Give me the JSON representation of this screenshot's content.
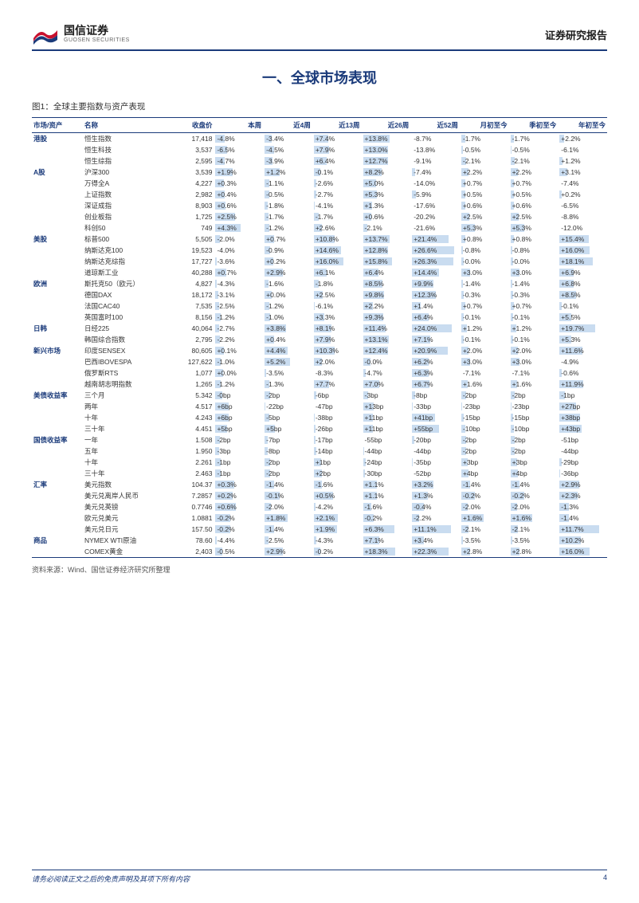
{
  "header": {
    "logo_cn": "国信证券",
    "logo_en": "GUOSEN SECURITIES",
    "report_type": "证券研究报告"
  },
  "section_title": "一、全球市场表现",
  "figure_label": "图1：全球主要指数与资产表现",
  "table": {
    "columns": [
      "市场/资产",
      "名称",
      "收盘价",
      "本周",
      "近4周",
      "近13周",
      "近26周",
      "近52周",
      "月初至今",
      "季初至今",
      "年初至今"
    ],
    "bar_color": "#c9dcf0",
    "groups": [
      {
        "group": "港股",
        "rows": [
          {
            "name": "恒生指数",
            "price": "17,418",
            "v": [
              "-4.8%",
              "-3.4%",
              "+7.4%",
              "+13.8%",
              "-8.7%",
              "-1.7%",
              "-1.7%",
              "+2.2%"
            ],
            "b": [
              20,
              15,
              32,
              58,
              0,
              8,
              8,
              10
            ]
          },
          {
            "name": "恒生科技",
            "price": "3,537",
            "v": [
              "-6.5%",
              "-4.5%",
              "+7.9%",
              "+13.0%",
              "-13.8%",
              "-0.5%",
              "-0.5%",
              "-6.1%"
            ],
            "b": [
              26,
              20,
              34,
              55,
              0,
              3,
              3,
              0
            ]
          },
          {
            "name": "恒生综指",
            "price": "2,595",
            "v": [
              "-4.7%",
              "-3.9%",
              "+6.4%",
              "+12.7%",
              "-9.1%",
              "-2.1%",
              "-2.1%",
              "+1.2%"
            ],
            "b": [
              20,
              17,
              28,
              54,
              0,
              10,
              10,
              6
            ]
          }
        ]
      },
      {
        "group": "A股",
        "rows": [
          {
            "name": "沪深300",
            "price": "3,539",
            "v": [
              "+1.9%",
              "+1.2%",
              "-0.1%",
              "+8.2%",
              "-7.4%",
              "+2.2%",
              "+2.2%",
              "+3.1%"
            ],
            "b": [
              38,
              32,
              14,
              40,
              6,
              16,
              16,
              16
            ]
          },
          {
            "name": "万得全A",
            "price": "4,227",
            "v": [
              "+0.3%",
              "-1.1%",
              "-2.6%",
              "+5.0%",
              "-14.0%",
              "+0.7%",
              "+0.7%",
              "-7.4%"
            ],
            "b": [
              18,
              10,
              6,
              28,
              0,
              8,
              8,
              0
            ]
          },
          {
            "name": "上证指数",
            "price": "2,982",
            "v": [
              "+0.4%",
              "-0.5%",
              "-2.7%",
              "+5.3%",
              "-5.9%",
              "+0.5%",
              "+0.5%",
              "+0.2%"
            ],
            "b": [
              20,
              10,
              6,
              30,
              8,
              8,
              8,
              4
            ]
          },
          {
            "name": "深证成指",
            "price": "8,903",
            "v": [
              "+0.6%",
              "-1.8%",
              "-4.1%",
              "+1.3%",
              "-17.6%",
              "+0.6%",
              "+0.6%",
              "-6.5%"
            ],
            "b": [
              22,
              6,
              2,
              20,
              0,
              8,
              8,
              0
            ]
          },
          {
            "name": "创业板指",
            "price": "1,725",
            "v": [
              "+2.5%",
              "-1.7%",
              "-1.7%",
              "+0.6%",
              "-20.2%",
              "+2.5%",
              "+2.5%",
              "-8.8%"
            ],
            "b": [
              42,
              8,
              10,
              18,
              0,
              18,
              18,
              0
            ]
          },
          {
            "name": "科创50",
            "price": "749",
            "v": [
              "+4.3%",
              "-1.2%",
              "+2.6%",
              "-2.1%",
              "-21.6%",
              "+5.3%",
              "+5.3%",
              "-12.0%"
            ],
            "b": [
              55,
              10,
              18,
              10,
              0,
              30,
              30,
              0
            ]
          }
        ]
      },
      {
        "group": "美股",
        "rows": [
          {
            "name": "标普500",
            "price": "5,505",
            "v": [
              "-2.0%",
              "+0.7%",
              "+10.8%",
              "+13.7%",
              "+21.4%",
              "+0.8%",
              "+0.8%",
              "+15.4%"
            ],
            "b": [
              10,
              20,
              46,
              58,
              80,
              8,
              8,
              64
            ]
          },
          {
            "name": "纳斯达克100",
            "price": "19,523",
            "v": [
              "-4.0%",
              "-0.9%",
              "+14.6%",
              "+12.8%",
              "+26.6%",
              "-0.8%",
              "-0.8%",
              "+16.0%"
            ],
            "b": [
              0,
              12,
              60,
              55,
              92,
              4,
              4,
              66
            ]
          },
          {
            "name": "纳斯达克综指",
            "price": "17,727",
            "v": [
              "-3.6%",
              "+0.2%",
              "+16.0%",
              "+15.8%",
              "+26.3%",
              "-0.0%",
              "-0.0%",
              "+18.1%"
            ],
            "b": [
              2,
              18,
              65,
              64,
              90,
              6,
              6,
              72
            ]
          },
          {
            "name": "道琼斯工业",
            "price": "40,288",
            "v": [
              "+0.7%",
              "+2.9%",
              "+6.1%",
              "+6.4%",
              "+14.4%",
              "+3.0%",
              "+3.0%",
              "+6.9%"
            ],
            "b": [
              24,
              40,
              28,
              34,
              58,
              20,
              20,
              30
            ]
          }
        ]
      },
      {
        "group": "欧洲",
        "rows": [
          {
            "name": "斯托克50（欧元）",
            "price": "4,827",
            "v": [
              "-4.3%",
              "-1.6%",
              "-1.8%",
              "+8.5%",
              "+9.9%",
              "-1.4%",
              "-1.4%",
              "+6.8%"
            ],
            "b": [
              2,
              8,
              10,
              42,
              46,
              4,
              4,
              30
            ]
          },
          {
            "name": "德国DAX",
            "price": "18,172",
            "v": [
              "-3.1%",
              "+0.0%",
              "+2.5%",
              "+9.8%",
              "+12.3%",
              "-0.3%",
              "-0.3%",
              "+8.5%"
            ],
            "b": [
              6,
              16,
              20,
              46,
              52,
              6,
              6,
              36
            ]
          },
          {
            "name": "法国CAC40",
            "price": "7,535",
            "v": [
              "-2.5%",
              "-1.2%",
              "-6.1%",
              "+2.2%",
              "+1.4%",
              "+0.7%",
              "+0.7%",
              "-0.1%"
            ],
            "b": [
              8,
              10,
              2,
              22,
              18,
              8,
              8,
              4
            ]
          },
          {
            "name": "英国富时100",
            "price": "8,156",
            "v": [
              "-1.2%",
              "-1.0%",
              "+3.3%",
              "+9.3%",
              "+6.4%",
              "-0.1%",
              "-0.1%",
              "+5.5%"
            ],
            "b": [
              12,
              12,
              22,
              44,
              36,
              6,
              6,
              26
            ]
          }
        ]
      },
      {
        "group": "日韩",
        "rows": [
          {
            "name": "日经225",
            "price": "40,064",
            "v": [
              "-2.7%",
              "+3.8%",
              "+8.1%",
              "+11.4%",
              "+24.0%",
              "+1.2%",
              "+1.2%",
              "+19.7%"
            ],
            "b": [
              8,
              46,
              38,
              50,
              86,
              12,
              12,
              78
            ]
          },
          {
            "name": "韩国综合指数",
            "price": "2,795",
            "v": [
              "-2.2%",
              "+0.4%",
              "+7.9%",
              "+13.1%",
              "+7.1%",
              "-0.1%",
              "-0.1%",
              "+5.3%"
            ],
            "b": [
              10,
              20,
              36,
              56,
              40,
              6,
              6,
              26
            ]
          }
        ]
      },
      {
        "group": "新兴市场",
        "rows": [
          {
            "name": "印度SENSEX",
            "price": "80,605",
            "v": [
              "+0.1%",
              "+4.4%",
              "+10.3%",
              "+12.4%",
              "+20.9%",
              "+2.0%",
              "+2.0%",
              "+11.6%"
            ],
            "b": [
              18,
              50,
              46,
              54,
              78,
              16,
              16,
              50
            ]
          },
          {
            "name": "巴西IBOVESPA",
            "price": "127,622",
            "v": [
              "-1.0%",
              "+5.2%",
              "+2.0%",
              "-0.0%",
              "+6.2%",
              "+3.0%",
              "+3.0%",
              "-4.9%"
            ],
            "b": [
              12,
              56,
              18,
              16,
              36,
              20,
              20,
              0
            ]
          },
          {
            "name": "俄罗斯RTS",
            "price": "1,077",
            "v": [
              "+0.0%",
              "-3.5%",
              "-8.3%",
              "-4.7%",
              "+6.3%",
              "-7.1%",
              "-7.1%",
              "-0.6%"
            ],
            "b": [
              16,
              4,
              0,
              6,
              36,
              0,
              0,
              4
            ]
          },
          {
            "name": "越南胡志明指数",
            "price": "1,265",
            "v": [
              "-1.2%",
              "-1.3%",
              "+7.7%",
              "+7.0%",
              "+6.7%",
              "+1.6%",
              "+1.6%",
              "+11.9%"
            ],
            "b": [
              12,
              10,
              34,
              36,
              38,
              14,
              14,
              52
            ]
          }
        ]
      },
      {
        "group": "美债收益率",
        "rows": [
          {
            "name": "三个月",
            "price": "5.342",
            "v": [
              "-0bp",
              "-2bp",
              "-6bp",
              "-3bp",
              "-8bp",
              "-2bp",
              "-2bp",
              "-1bp"
            ],
            "b": [
              14,
              12,
              6,
              12,
              6,
              10,
              10,
              12
            ]
          },
          {
            "name": "两年",
            "price": "4.517",
            "v": [
              "+6bp",
              "-22bp",
              "-47bp",
              "+13bp",
              "-33bp",
              "-23bp",
              "-23bp",
              "+27bp"
            ],
            "b": [
              28,
              2,
              0,
              24,
              2,
              2,
              2,
              36
            ]
          },
          {
            "name": "十年",
            "price": "4.243",
            "v": [
              "+6bp",
              "-5bp",
              "-38bp",
              "+11bp",
              "+41bp",
              "-15bp",
              "-15bp",
              "+38bp"
            ],
            "b": [
              28,
              10,
              2,
              22,
              50,
              6,
              6,
              44
            ]
          },
          {
            "name": "三十年",
            "price": "4.451",
            "v": [
              "+5bp",
              "+5bp",
              "-26bp",
              "+11bp",
              "+55bp",
              "-10bp",
              "-10bp",
              "+43bp"
            ],
            "b": [
              26,
              22,
              4,
              22,
              58,
              8,
              8,
              48
            ]
          }
        ]
      },
      {
        "group": "国债收益率",
        "rows": [
          {
            "name": "一年",
            "price": "1.508",
            "v": [
              "-2bp",
              "-7bp",
              "-17bp",
              "-55bp",
              "-20bp",
              "-2bp",
              "-2bp",
              "-51bp"
            ],
            "b": [
              10,
              6,
              4,
              0,
              4,
              10,
              10,
              0
            ]
          },
          {
            "name": "五年",
            "price": "1.950",
            "v": [
              "-3bp",
              "-8bp",
              "-14bp",
              "-44bp",
              "-44bp",
              "-2bp",
              "-2bp",
              "-44bp"
            ],
            "b": [
              8,
              6,
              6,
              2,
              0,
              10,
              10,
              0
            ]
          },
          {
            "name": "十年",
            "price": "2.261",
            "v": [
              "-1bp",
              "-2bp",
              "+1bp",
              "-24bp",
              "-35bp",
              "+3bp",
              "+3bp",
              "-29bp"
            ],
            "b": [
              12,
              12,
              16,
              6,
              2,
              14,
              14,
              4
            ]
          },
          {
            "name": "三十年",
            "price": "2.463",
            "v": [
              "-1bp",
              "-2bp",
              "+2bp",
              "-30bp",
              "-52bp",
              "+4bp",
              "+4bp",
              "-36bp"
            ],
            "b": [
              12,
              12,
              18,
              4,
              0,
              16,
              16,
              2
            ]
          }
        ]
      },
      {
        "group": "汇率",
        "rows": [
          {
            "name": "美元指数",
            "price": "104.37",
            "v": [
              "+0.3%",
              "-1.4%",
              "-1.6%",
              "+1.1%",
              "+3.2%",
              "-1.4%",
              "-1.4%",
              "+2.9%"
            ],
            "b": [
              40,
              20,
              18,
              30,
              46,
              20,
              20,
              42
            ]
          },
          {
            "name": "美元兑离岸人民币",
            "price": "7.2857",
            "v": [
              "+0.2%",
              "-0.1%",
              "+0.5%",
              "+1.1%",
              "+1.3%",
              "-0.2%",
              "-0.2%",
              "+2.3%"
            ],
            "b": [
              38,
              32,
              42,
              30,
              34,
              30,
              30,
              40
            ]
          },
          {
            "name": "美元兑英镑",
            "price": "0.7746",
            "v": [
              "+0.6%",
              "-2.0%",
              "-4.2%",
              "-1.6%",
              "-0.4%",
              "-2.0%",
              "-2.0%",
              "-1.3%"
            ],
            "b": [
              44,
              14,
              4,
              18,
              26,
              14,
              14,
              20
            ]
          },
          {
            "name": "欧元兑美元",
            "price": "1.0881",
            "v": [
              "-0.2%",
              "+1.8%",
              "+2.1%",
              "-0.2%",
              "-2.2%",
              "+1.6%",
              "+1.6%",
              "-1.4%"
            ],
            "b": [
              32,
              50,
              52,
              24,
              16,
              48,
              48,
              20
            ]
          },
          {
            "name": "美元兑日元",
            "price": "157.50",
            "v": [
              "-0.2%",
              "-1.4%",
              "+1.9%",
              "+6.3%",
              "+11.1%",
              "-2.1%",
              "-2.1%",
              "+11.7%"
            ],
            "b": [
              32,
              20,
              50,
              68,
              84,
              16,
              16,
              86
            ]
          }
        ]
      },
      {
        "group": "商品",
        "rows": [
          {
            "name": "NYMEX WTI原油",
            "price": "78.60",
            "v": [
              "-4.4%",
              "-2.5%",
              "-4.3%",
              "+7.1%",
              "+3.4%",
              "-3.5%",
              "-3.5%",
              "+10.2%"
            ],
            "b": [
              2,
              8,
              6,
              36,
              26,
              4,
              4,
              46
            ]
          },
          {
            "name": "COMEX黄金",
            "price": "2,403",
            "v": [
              "-0.5%",
              "+2.9%",
              "-0.2%",
              "+18.3%",
              "+22.3%",
              "+2.8%",
              "+2.8%",
              "+16.0%"
            ],
            "b": [
              14,
              40,
              14,
              70,
              80,
              20,
              20,
              66
            ]
          }
        ]
      }
    ]
  },
  "source": "资料来源：Wind、国信证券经济研究所整理",
  "footer": {
    "disclaimer": "请务必阅读正文之后的免责声明及其项下所有内容",
    "page": "4"
  },
  "colors": {
    "primary": "#1a3a7a",
    "bar": "#c9dcf0",
    "logo_red": "#c8102e",
    "logo_blue": "#1a3a7a"
  }
}
